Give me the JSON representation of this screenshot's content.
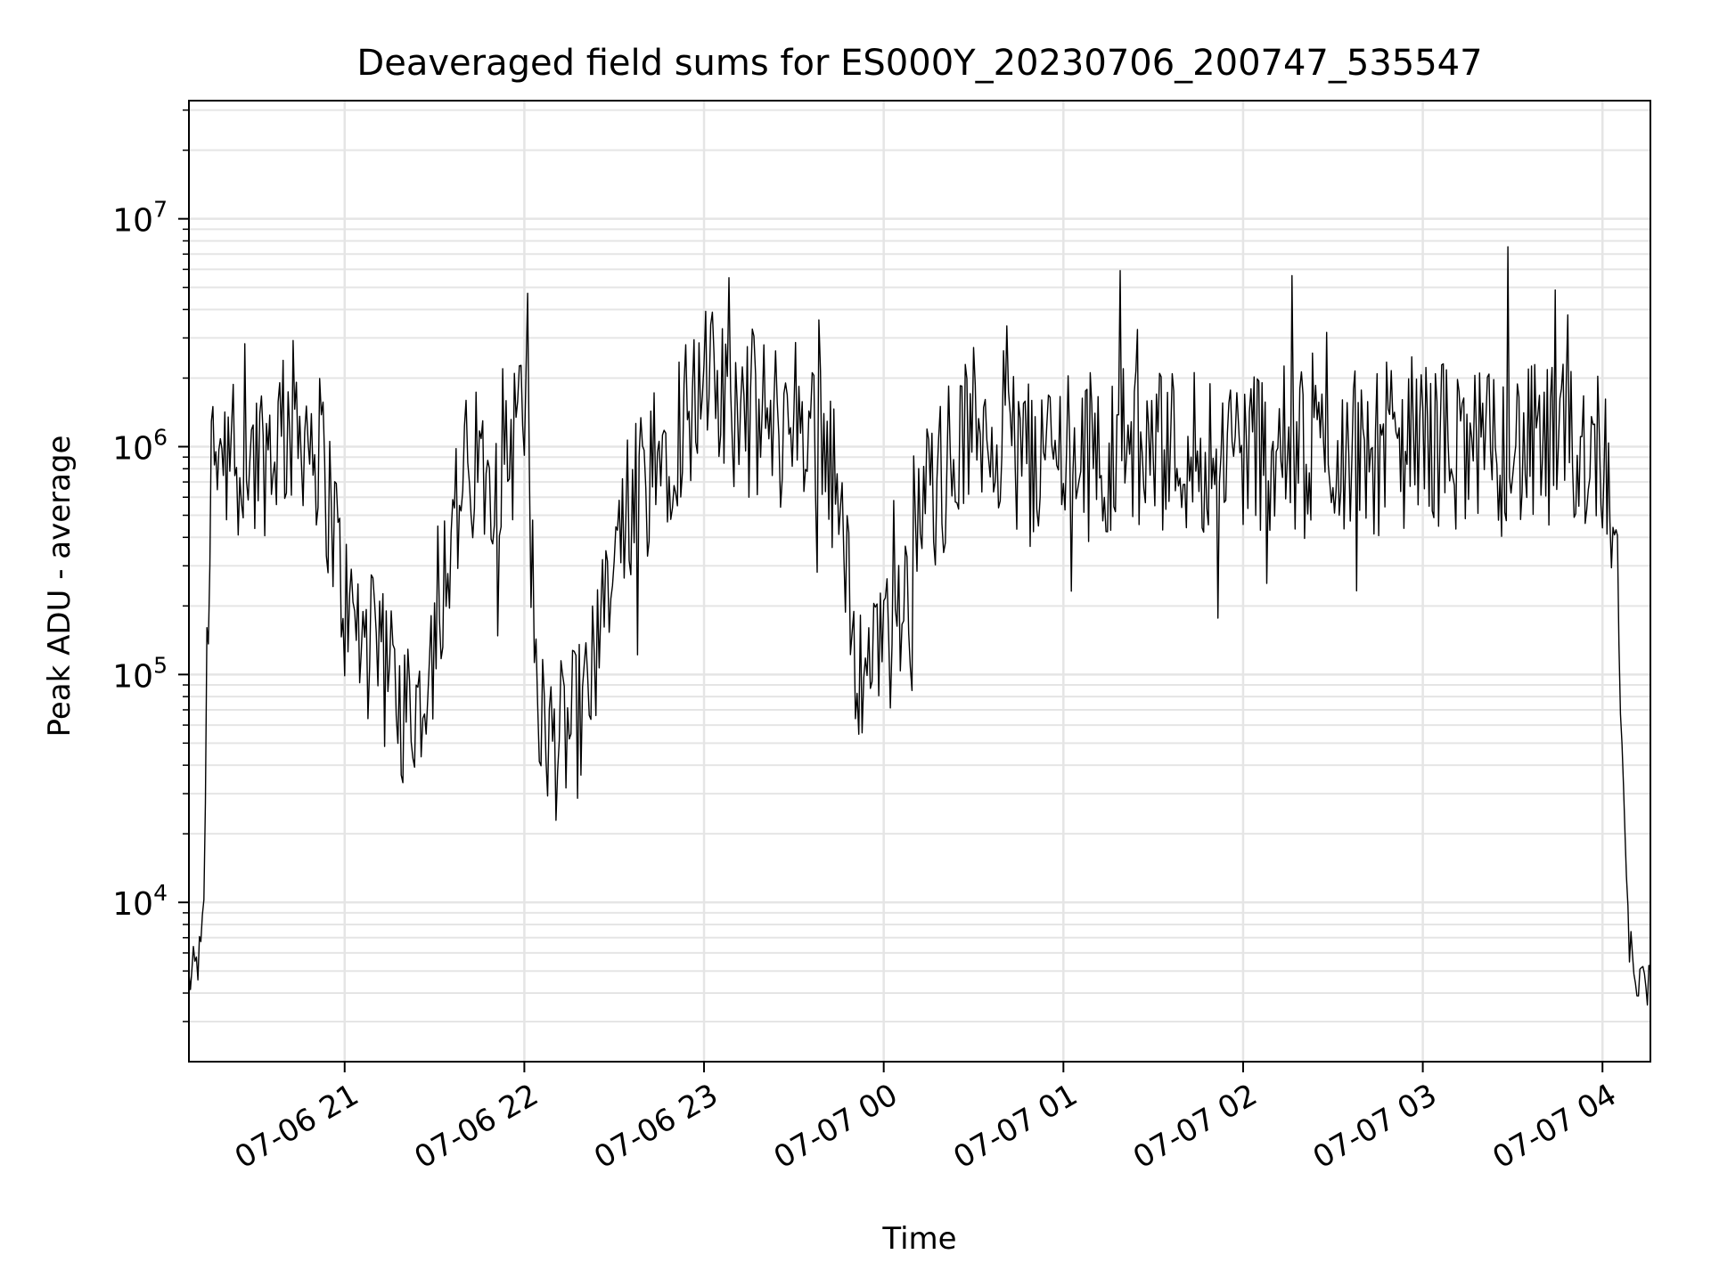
{
  "chart_data": {
    "type": "line",
    "title": "Deaveraged field sums for ES000Y_20230706_200747_535547",
    "xlabel": "Time",
    "ylabel": "Peak ADU - average",
    "yscale": "log",
    "ylim": [
      2000,
      33000000
    ],
    "grid": "both-major-and-minor",
    "legend": "none",
    "line_color": "#000000",
    "grid_color": "#e5e5e5",
    "x_ticks": [
      {
        "label": "07-06 21",
        "value": "2023-07-06T21:00"
      },
      {
        "label": "07-06 22",
        "value": "2023-07-06T22:00"
      },
      {
        "label": "07-06 23",
        "value": "2023-07-06T23:00"
      },
      {
        "label": "07-07 00",
        "value": "2023-07-07T00:00"
      },
      {
        "label": "07-07 01",
        "value": "2023-07-07T01:00"
      },
      {
        "label": "07-07 02",
        "value": "2023-07-07T02:00"
      },
      {
        "label": "07-07 03",
        "value": "2023-07-07T03:00"
      },
      {
        "label": "07-07 04",
        "value": "2023-07-07T04:00"
      }
    ],
    "xlim": [
      "2023-07-06T20:08",
      "2023-07-07T04:16"
    ],
    "y_ticks": [
      {
        "base": "10",
        "exp": "4",
        "value": 10000
      },
      {
        "base": "10",
        "exp": "5",
        "value": 100000
      },
      {
        "base": "10",
        "exp": "6",
        "value": 1000000
      },
      {
        "base": "10",
        "exp": "7",
        "value": 10000000
      }
    ],
    "series": [
      {
        "x": [
          "2023-07-06T20:08",
          "2023-07-06T20:10",
          "2023-07-06T20:12",
          "2023-07-06T20:13",
          "2023-07-06T20:14",
          "2023-07-06T20:15",
          "2023-07-06T20:16",
          "2023-07-06T20:18",
          "2023-07-06T20:20",
          "2023-07-06T20:25",
          "2023-07-06T20:30",
          "2023-07-06T20:35",
          "2023-07-06T20:40",
          "2023-07-06T20:45",
          "2023-07-06T20:50",
          "2023-07-06T20:55",
          "2023-07-06T21:00",
          "2023-07-06T21:05",
          "2023-07-06T21:10",
          "2023-07-06T21:15",
          "2023-07-06T21:20",
          "2023-07-06T21:25",
          "2023-07-06T21:30",
          "2023-07-06T21:35",
          "2023-07-06T21:40",
          "2023-07-06T21:45",
          "2023-07-06T21:50",
          "2023-07-06T21:55",
          "2023-07-06T22:00",
          "2023-07-06T22:05",
          "2023-07-06T22:10",
          "2023-07-06T22:15",
          "2023-07-06T22:20",
          "2023-07-06T22:25",
          "2023-07-06T22:30",
          "2023-07-06T22:35",
          "2023-07-06T22:40",
          "2023-07-06T22:45",
          "2023-07-06T22:50",
          "2023-07-06T22:55",
          "2023-07-06T23:00",
          "2023-07-06T23:05",
          "2023-07-06T23:10",
          "2023-07-06T23:15",
          "2023-07-06T23:20",
          "2023-07-06T23:25",
          "2023-07-06T23:30",
          "2023-07-06T23:35",
          "2023-07-06T23:40",
          "2023-07-06T23:45",
          "2023-07-06T23:50",
          "2023-07-06T23:55",
          "2023-07-07T00:00",
          "2023-07-07T00:05",
          "2023-07-07T00:10",
          "2023-07-07T00:15",
          "2023-07-07T00:20",
          "2023-07-07T00:25",
          "2023-07-07T00:30",
          "2023-07-07T00:35",
          "2023-07-07T00:40",
          "2023-07-07T00:45",
          "2023-07-07T00:50",
          "2023-07-07T00:55",
          "2023-07-07T01:00",
          "2023-07-07T01:10",
          "2023-07-07T01:20",
          "2023-07-07T01:30",
          "2023-07-07T01:40",
          "2023-07-07T01:50",
          "2023-07-07T02:00",
          "2023-07-07T02:10",
          "2023-07-07T02:20",
          "2023-07-07T02:30",
          "2023-07-07T02:40",
          "2023-07-07T02:50",
          "2023-07-07T03:00",
          "2023-07-07T03:10",
          "2023-07-07T03:20",
          "2023-07-07T03:30",
          "2023-07-07T03:40",
          "2023-07-07T03:50",
          "2023-07-07T04:00",
          "2023-07-07T04:02",
          "2023-07-07T04:04",
          "2023-07-07T04:06",
          "2023-07-07T04:08",
          "2023-07-07T04:10",
          "2023-07-07T04:12",
          "2023-07-07T04:14",
          "2023-07-07T04:16"
        ],
        "y": [
          4500,
          5000,
          6000,
          9000,
          100000,
          500000,
          1000000,
          1200000,
          1000000,
          800000,
          900000,
          1000000,
          1200000,
          1300000,
          1100000,
          600000,
          200000,
          150000,
          120000,
          90000,
          70000,
          80000,
          150000,
          400000,
          700000,
          800000,
          900000,
          1000000,
          1500000,
          60000,
          50000,
          55000,
          70000,
          120000,
          300000,
          500000,
          700000,
          900000,
          1200000,
          1500000,
          1800000,
          1600000,
          1500000,
          1400000,
          1300000,
          1200000,
          1400000,
          1300000,
          1200000,
          600000,
          120000,
          100000,
          110000,
          200000,
          400000,
          600000,
          800000,
          1000000,
          1200000,
          1300000,
          1100000,
          1000000,
          900000,
          950000,
          1000000,
          900000,
          1000000,
          950000,
          1000000,
          950000,
          1000000,
          1000000,
          900000,
          1000000,
          950000,
          1000000,
          1100000,
          1000000,
          900000,
          1000000,
          950000,
          1000000,
          1000000,
          800000,
          500000,
          100000,
          10000,
          5000,
          4500,
          4000,
          5000
        ]
      }
    ]
  }
}
